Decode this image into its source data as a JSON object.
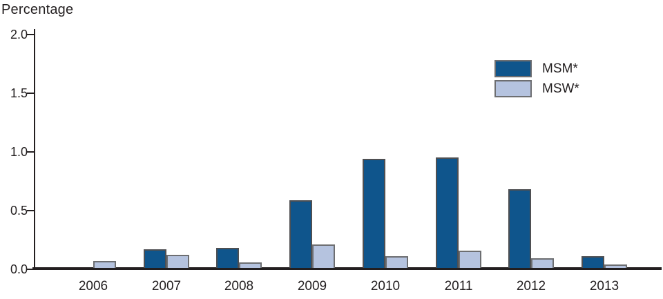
{
  "chart_data": {
    "type": "bar",
    "title": "",
    "ylabel": "Percentage",
    "xlabel": "",
    "categories": [
      "2006",
      "2007",
      "2008",
      "2009",
      "2010",
      "2011",
      "2012",
      "2013"
    ],
    "series": [
      {
        "name": "MSM*",
        "color": "#0F558C",
        "border_color": "#4E4F52",
        "values": [
          0.0,
          0.16,
          0.17,
          0.58,
          0.93,
          0.94,
          0.67,
          0.1
        ]
      },
      {
        "name": "MSW*",
        "color": "#B5C3DF",
        "border_color": "#6D6E71",
        "values": [
          0.06,
          0.11,
          0.05,
          0.2,
          0.1,
          0.15,
          0.08,
          0.03
        ]
      }
    ],
    "y_ticks": [
      "0.0",
      "0.5",
      "1.0",
      "1.5",
      "2.0"
    ],
    "ylim": [
      0.0,
      2.0
    ],
    "grid": false,
    "legend_position": "upper right"
  },
  "colors": {
    "axis": "#231F20",
    "text": "#231F20",
    "background": "#FFFFFF",
    "msm_fill": "#0F558C",
    "msw_fill": "#B5C3DF",
    "bar_border": "#6D6E71"
  }
}
